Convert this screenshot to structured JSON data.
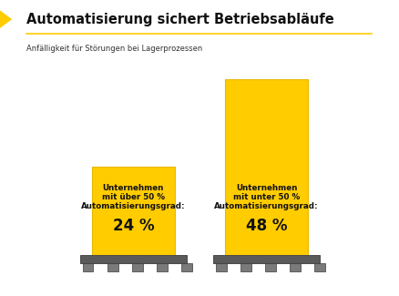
{
  "chart_data": {
    "type": "bar",
    "title": "Automatisierung sichert Betriebsabläufe",
    "subtitle": "Anfälligkeit für Störungen bei Lagerprozessen",
    "categories": [
      "Unternehmen mit über 50 % Automatisierungsgrad:",
      "Unternehmen mit unter 50 % Automatisierungsgrad:"
    ],
    "values": [
      24,
      48
    ],
    "value_labels": [
      "24 %",
      "48 %"
    ],
    "data_labels": true,
    "color": "#ffcc00",
    "tick_labels": false,
    "grid": false
  }
}
